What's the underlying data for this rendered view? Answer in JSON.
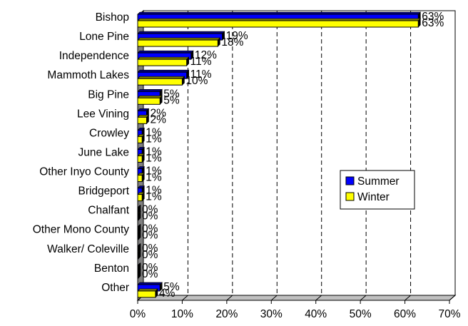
{
  "chart_data": {
    "type": "bar",
    "orientation": "horizontal",
    "style": "3d",
    "categories": [
      "Bishop",
      "Lone Pine",
      "Independence",
      "Mammoth Lakes",
      "Big Pine",
      "Lee Vining",
      "Crowley",
      "June Lake",
      "Other Inyo County",
      "Bridgeport",
      "Chalfant",
      "Other Mono County",
      "Walker/ Coleville",
      "Benton",
      "Other"
    ],
    "series": [
      {
        "name": "Summer",
        "color": "#0000ff",
        "values": [
          63,
          19,
          12,
          11,
          5,
          2,
          1,
          1,
          1,
          1,
          0,
          0,
          0,
          0,
          5
        ],
        "labels": [
          "63%",
          "19%",
          "12%",
          "11%",
          "5%",
          "2%",
          "1%",
          "1%",
          "1%",
          "1%",
          "0%",
          "0%",
          "0%",
          "0%",
          "5%"
        ]
      },
      {
        "name": "Winter",
        "color": "#ffff00",
        "values": [
          63,
          18,
          11,
          10,
          5,
          2,
          1,
          1,
          1,
          1,
          0,
          0,
          0,
          0,
          4
        ],
        "labels": [
          "63%",
          "18%",
          "11%",
          "10%",
          "5%",
          "2%",
          "1%",
          "1%",
          "1%",
          "1%",
          "0%",
          "0%",
          "0%",
          "0%",
          "4%"
        ]
      }
    ],
    "xlim": [
      0,
      70
    ],
    "xticks": [
      0,
      10,
      20,
      30,
      40,
      50,
      60,
      70
    ],
    "xtick_labels": [
      "0%",
      "10%",
      "20%",
      "30%",
      "40%",
      "50%",
      "60%",
      "70%"
    ],
    "grid": "vertical dashed",
    "legend_position": "right"
  }
}
